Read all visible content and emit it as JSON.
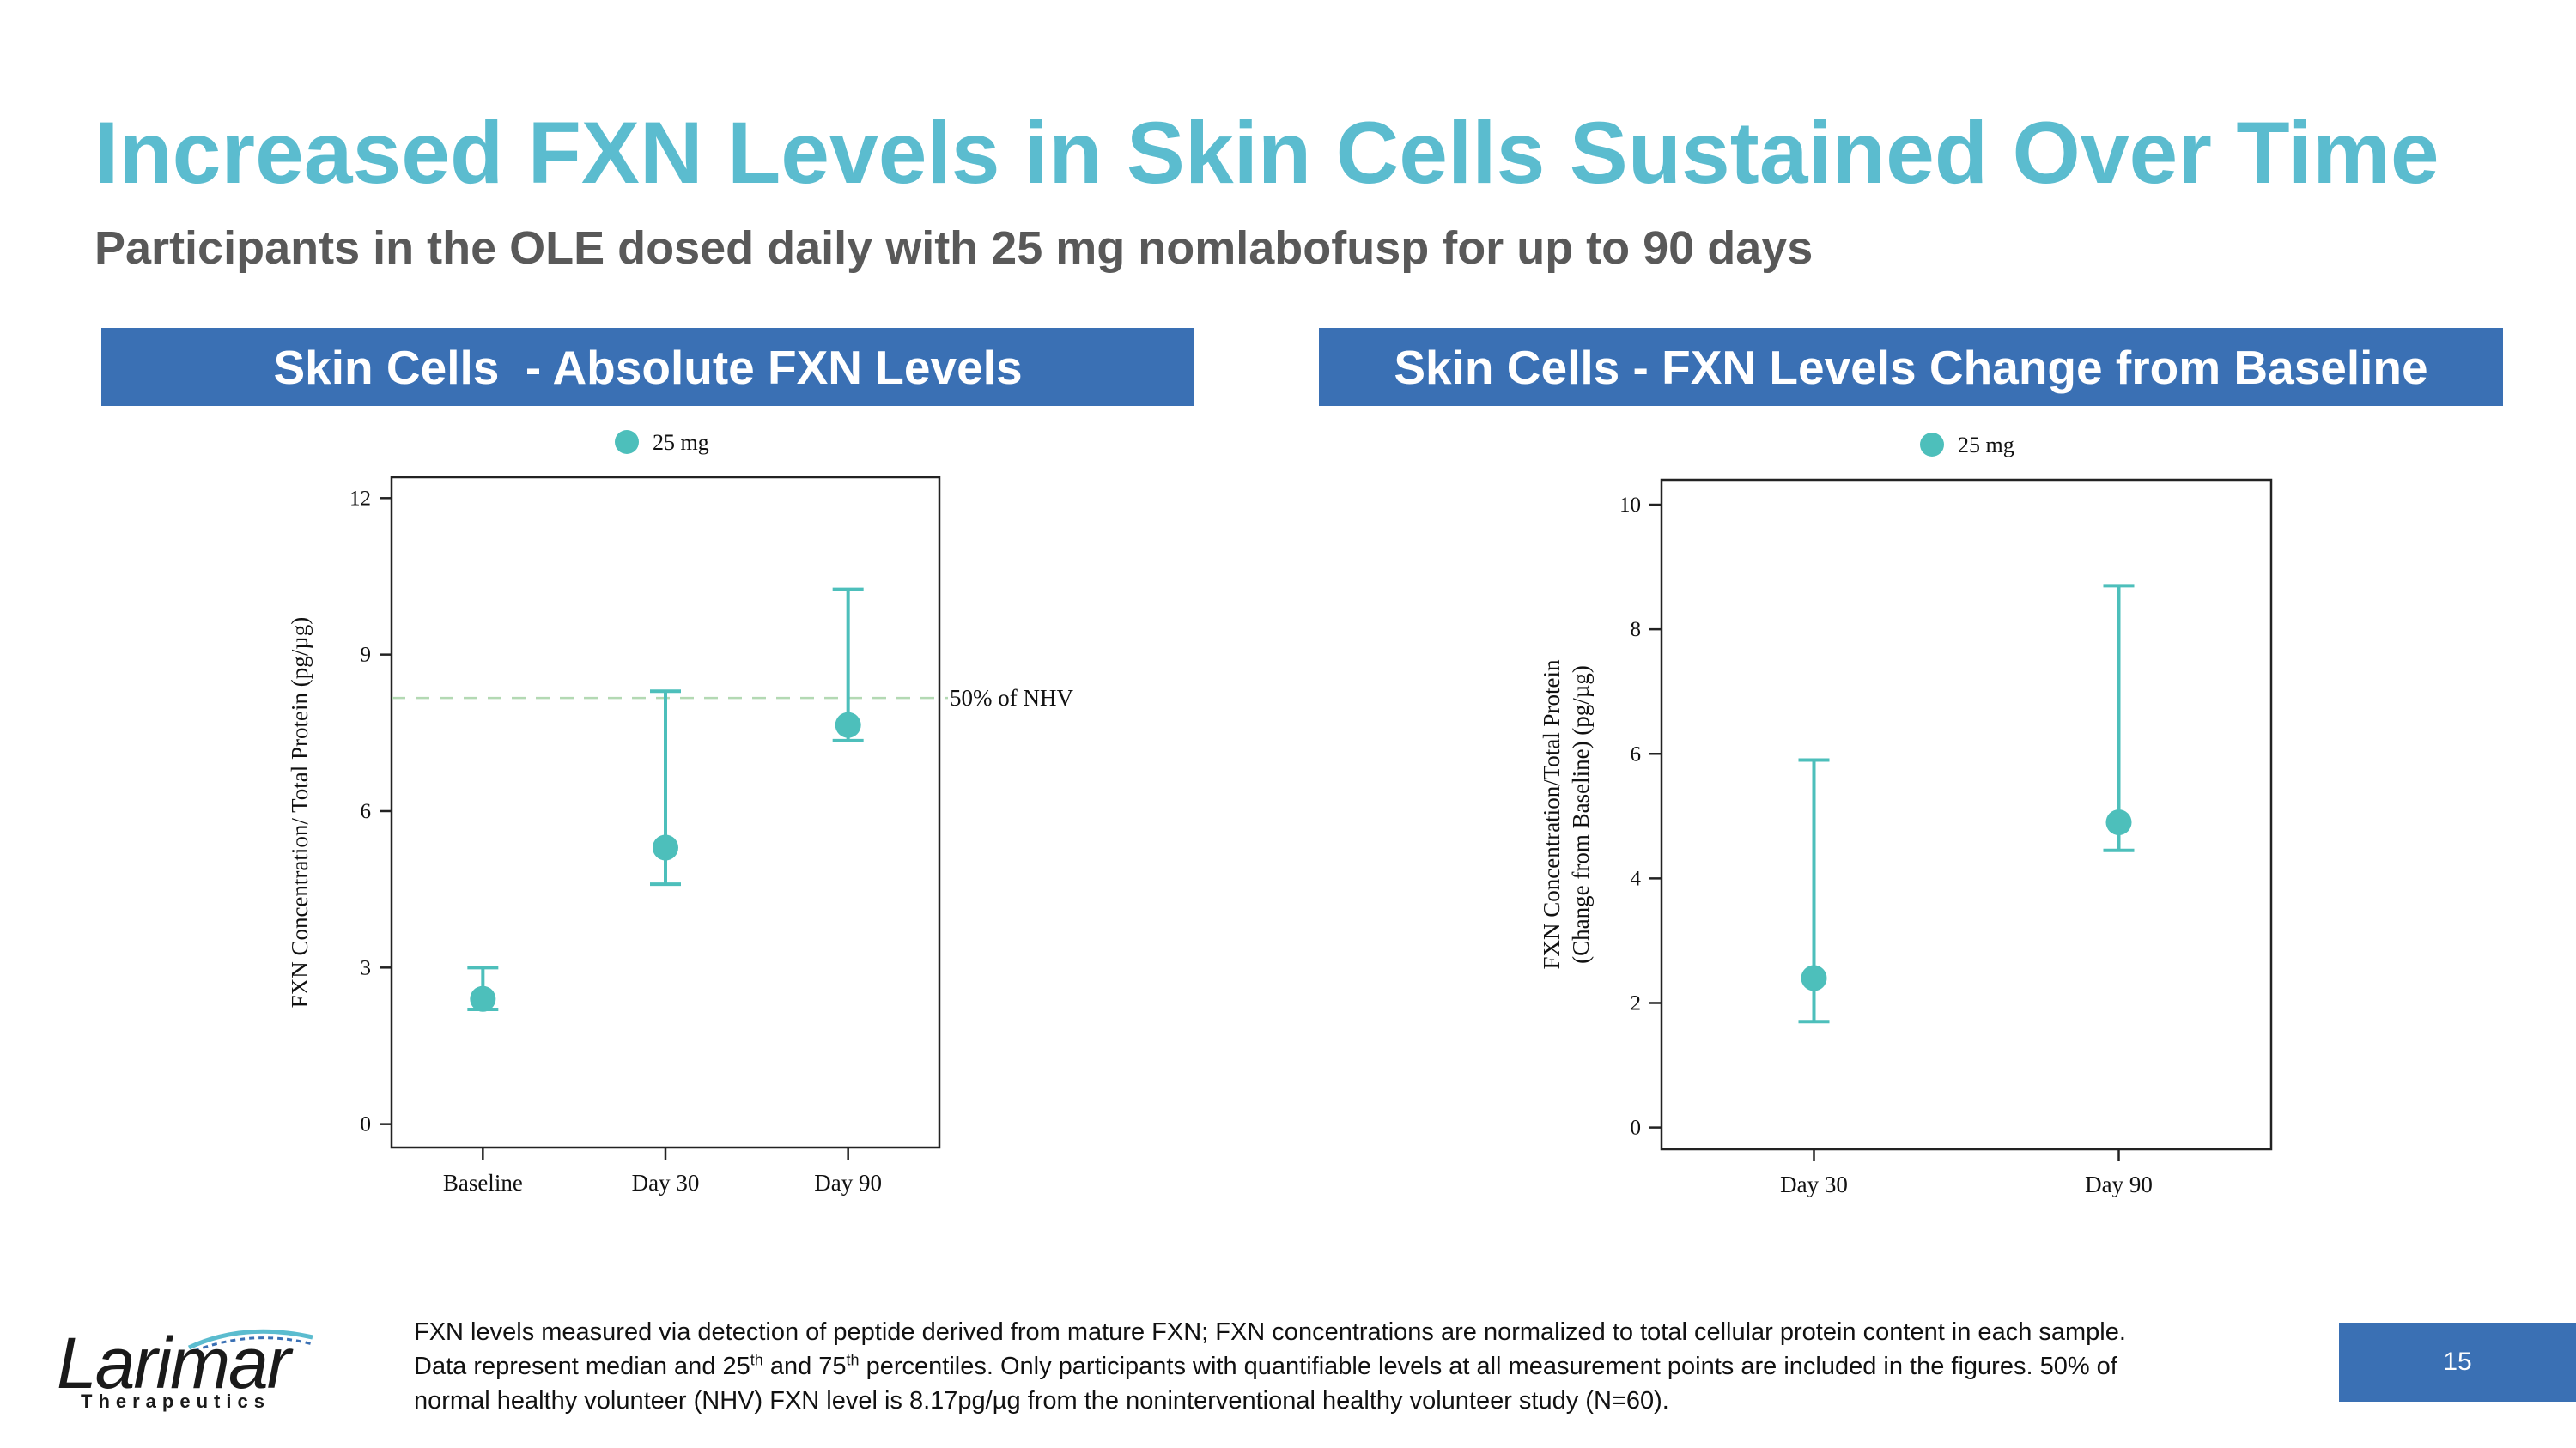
{
  "slide": {
    "title": "Increased FXN Levels in Skin Cells Sustained Over Time",
    "subtitle": "Participants in the OLE dosed daily with 25 mg nomlabofusp for up to 90 days",
    "page_number": "15"
  },
  "panels": [
    {
      "header": "Skin Cells  - Absolute FXN Levels"
    },
    {
      "header": "Skin Cells - FXN Levels Change from Baseline"
    }
  ],
  "footnote": {
    "line1": "FXN levels measured via detection of peptide derived from mature FXN; FXN concentrations are normalized to total cellular protein content in each sample.",
    "line2_a": "Data represent median and 25",
    "line2_sup1": "th",
    "line2_b": " and 75",
    "line2_sup2": "th",
    "line2_c": "  percentiles. Only participants with quantifiable levels at all measurement points are included in the figures. 50% of",
    "line3": "normal healthy volunteer (NHV) FXN level is 8.17pg/µg from the noninterventional healthy volunteer study (N=60)."
  },
  "logo": {
    "name": "Larimar",
    "tagline": "Therapeutics"
  },
  "colors": {
    "accent": "#5bbccf",
    "header": "#3a70b4",
    "marker": "#4dbfbb",
    "reference": "#b3d9b3"
  },
  "chart_data": [
    {
      "type": "scatter",
      "categories": [
        "Baseline",
        "Day 30",
        "Day 90"
      ],
      "series": [
        {
          "name": "25 mg",
          "median": [
            2.4,
            5.3,
            7.65
          ],
          "q25": [
            2.2,
            4.6,
            7.35
          ],
          "q75": [
            3.0,
            8.3,
            10.25
          ]
        }
      ],
      "ylabel": "FXN Concentration/ Total Protein (pg/µg)",
      "ylim": [
        -0.45,
        12.4
      ],
      "yticks": [
        0,
        3,
        6,
        9,
        12
      ],
      "reference_line": {
        "value": 8.17,
        "label": "50% of NHV"
      },
      "legend": "top-center",
      "grid": false
    },
    {
      "type": "scatter",
      "categories": [
        "Day 30",
        "Day 90"
      ],
      "series": [
        {
          "name": "25 mg",
          "median": [
            2.4,
            4.9
          ],
          "q25": [
            1.7,
            4.45
          ],
          "q75": [
            5.9,
            8.7
          ]
        }
      ],
      "ylabel": "FXN Concentration/Total Protein",
      "ylabel2": "(Change from Baseline) (pg/µg)",
      "ylim": [
        -0.35,
        10.4
      ],
      "yticks": [
        0,
        2,
        4,
        6,
        8,
        10
      ],
      "legend": "top-center",
      "grid": false
    }
  ]
}
